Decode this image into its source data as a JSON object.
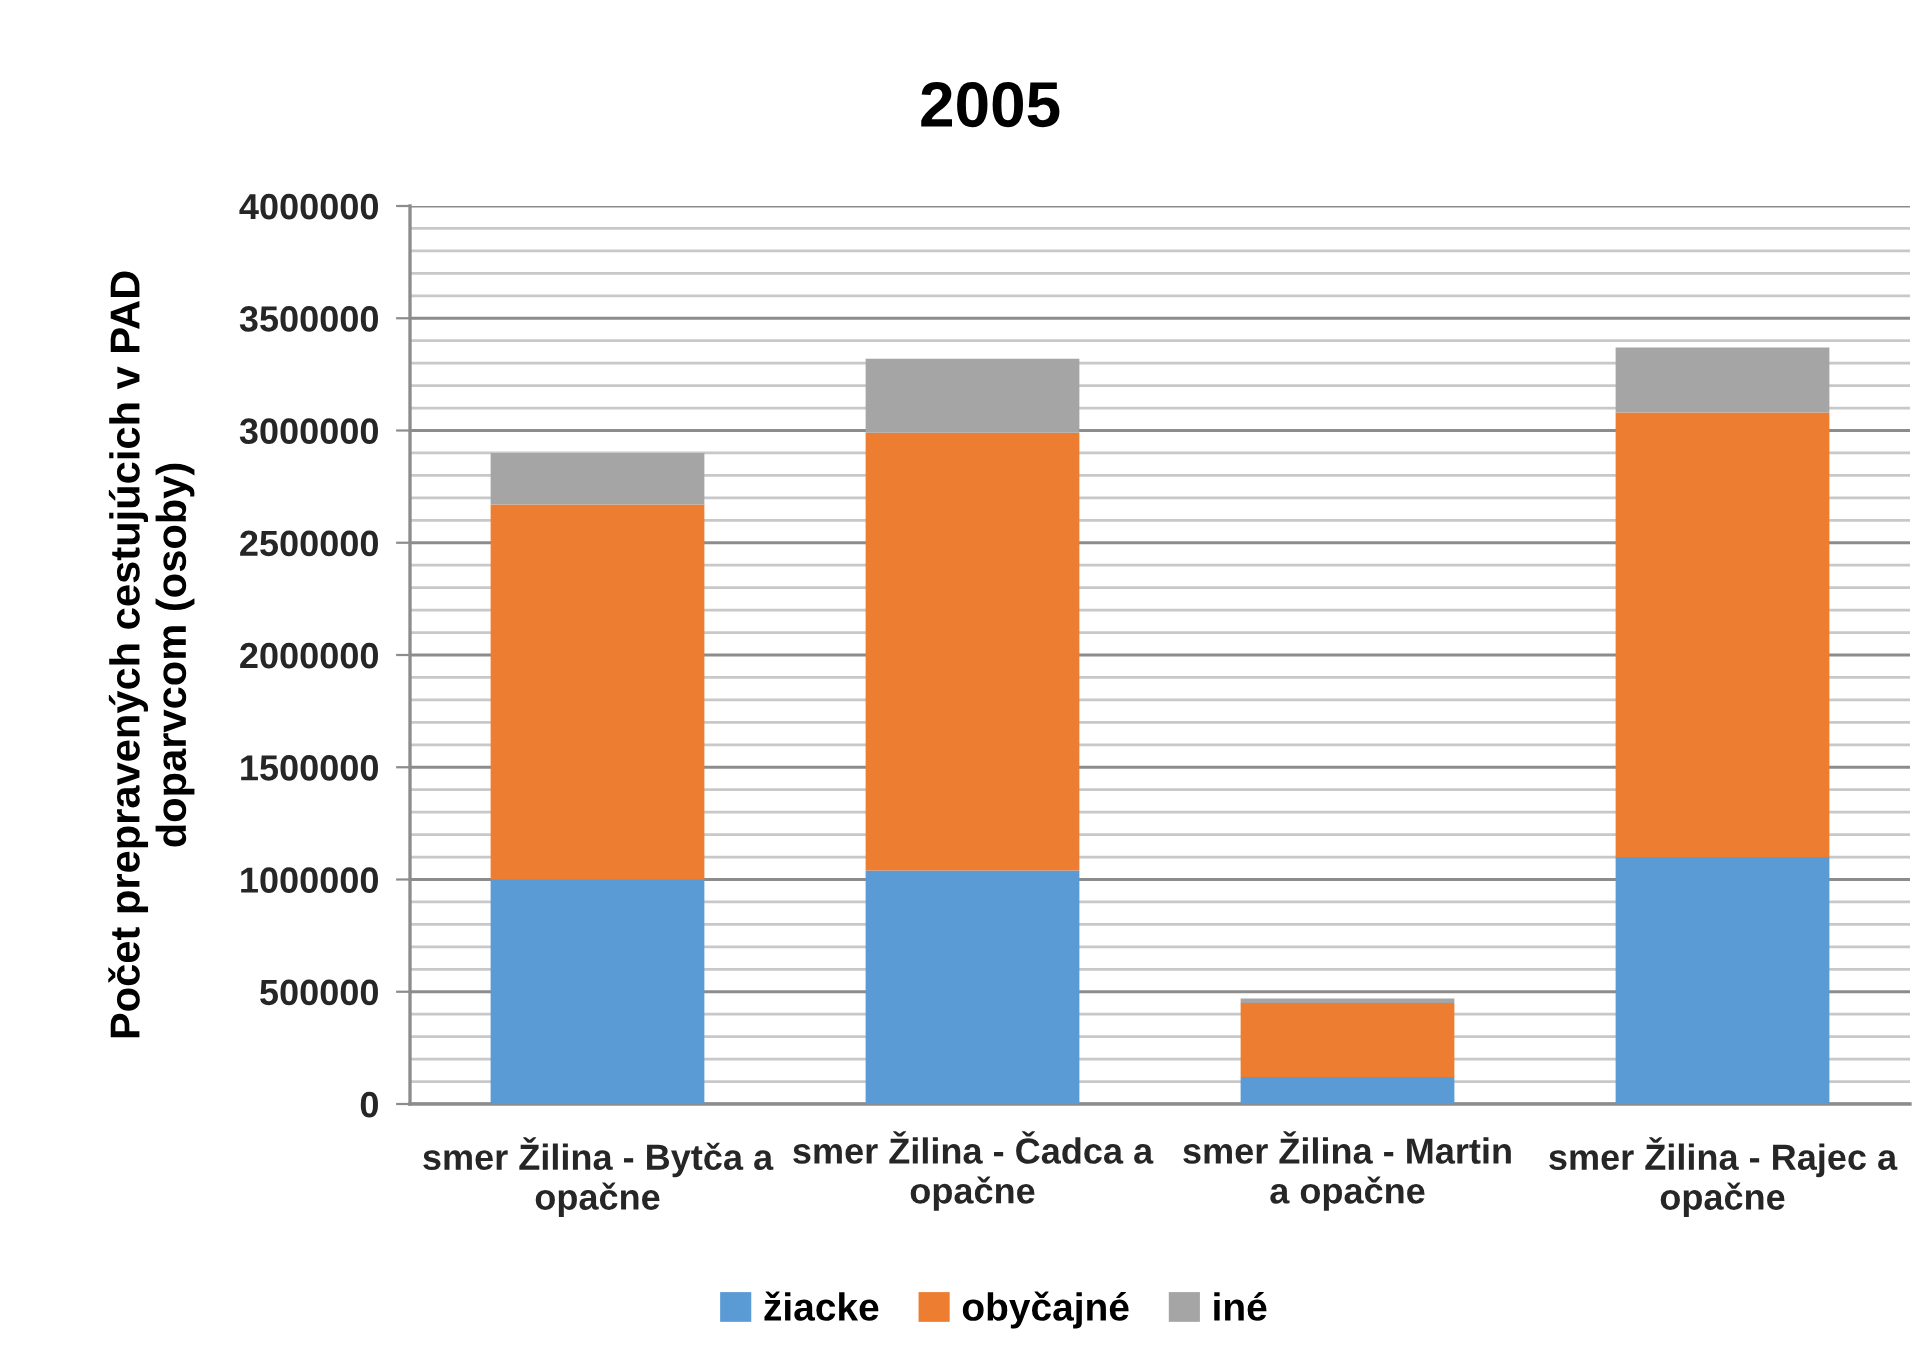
{
  "chart_data": {
    "type": "bar",
    "stacked": true,
    "title": "2005",
    "ylabel": "Počet prepravených cestujúcich v PAD\ndoparvcom (osoby)",
    "categories": [
      "smer Žilina - Bytča a\nopačne",
      "smer Žilina - Čadca a\nopačne",
      "smer Žilina - Martin\na opačne",
      "smer Žilina - Rajec a\nopačne"
    ],
    "series": [
      {
        "name": "žiacke",
        "color": "#5b9bd5",
        "values": [
          1000000,
          1040000,
          120000,
          1100000
        ]
      },
      {
        "name": "obyčajné",
        "color": "#ed7d31",
        "values": [
          1670000,
          1950000,
          330000,
          1980000
        ]
      },
      {
        "name": "iné",
        "color": "#a5a5a5",
        "values": [
          230000,
          330000,
          20000,
          290000
        ]
      }
    ],
    "ylim": [
      0,
      4000000
    ],
    "yticks": [
      0,
      {
        "value": 100000,
        "label": null
      },
      {
        "value": 200000,
        "label": null
      },
      {
        "value": 300000,
        "label": null
      },
      {
        "value": 400000,
        "label": null
      },
      500000,
      {
        "value": 600000,
        "label": null
      },
      {
        "value": 700000,
        "label": null
      },
      {
        "value": 800000,
        "label": null
      },
      {
        "value": 900000,
        "label": null
      },
      1000000,
      {
        "value": 1100000,
        "label": null
      },
      {
        "value": 1200000,
        "label": null
      },
      {
        "value": 1300000,
        "label": null
      },
      {
        "value": 1400000,
        "label": null
      },
      1500000,
      {
        "value": 1600000,
        "label": null
      },
      {
        "value": 1700000,
        "label": null
      },
      {
        "value": 1800000,
        "label": null
      },
      {
        "value": 1900000,
        "label": null
      },
      2000000,
      {
        "value": 2100000,
        "label": null
      },
      {
        "value": 2200000,
        "label": null
      },
      {
        "value": 2300000,
        "label": null
      },
      {
        "value": 2400000,
        "label": null
      },
      2500000,
      {
        "value": 2600000,
        "label": null
      },
      {
        "value": 2700000,
        "label": null
      },
      {
        "value": 2800000,
        "label": null
      },
      {
        "value": 2900000,
        "label": null
      },
      3000000,
      {
        "value": 3100000,
        "label": null
      },
      {
        "value": 3200000,
        "label": null
      },
      {
        "value": 3300000,
        "label": null
      },
      {
        "value": 3400000,
        "label": null
      },
      3500000,
      {
        "value": 3600000,
        "label": null
      },
      {
        "value": 3700000,
        "label": null
      },
      {
        "value": 3800000,
        "label": null
      },
      {
        "value": 3900000,
        "label": null
      },
      4000000
    ],
    "grid": "y",
    "legend": "bottom"
  }
}
